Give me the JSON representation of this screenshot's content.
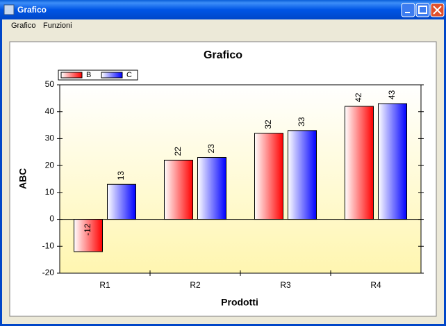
{
  "window": {
    "title": "Grafico"
  },
  "menu": [
    "Grafico",
    "Funzioni"
  ],
  "chart_data": {
    "type": "bar",
    "title": "Grafico",
    "x_label": "Prodotti",
    "y_label": "ABC",
    "categories": [
      "R1",
      "R2",
      "R3",
      "R4"
    ],
    "series": [
      {
        "name": "B",
        "color": "#ff0000",
        "values": [
          -12,
          22,
          32,
          42
        ]
      },
      {
        "name": "C",
        "color": "#0000ff",
        "values": [
          13,
          23,
          33,
          43
        ]
      }
    ],
    "ylim": [
      -20,
      50
    ],
    "yticks": [
      -20,
      -10,
      0,
      10,
      20,
      30,
      40,
      50
    ],
    "grid": false,
    "legend": "top-left"
  }
}
